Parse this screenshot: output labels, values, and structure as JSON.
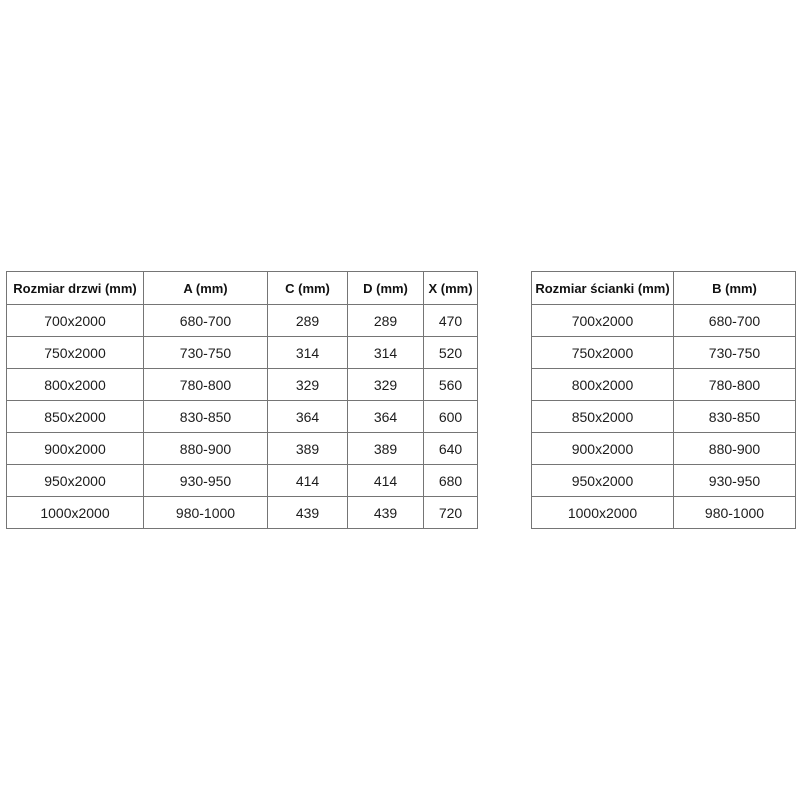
{
  "page": {
    "background_color": "#ffffff",
    "border_color": "#757575",
    "text_color": "#1c1c1c"
  },
  "tables": [
    {
      "id": "door-table",
      "title_column": "Rozmiar drzwi (mm)",
      "headers": [
        "Rozmiar drzwi (mm)",
        "A (mm)",
        "C (mm)",
        "D (mm)",
        "X (mm)"
      ],
      "rows": [
        [
          "700x2000",
          "680-700",
          "289",
          "289",
          "470"
        ],
        [
          "750x2000",
          "730-750",
          "314",
          "314",
          "520"
        ],
        [
          "800x2000",
          "780-800",
          "329",
          "329",
          "560"
        ],
        [
          "850x2000",
          "830-850",
          "364",
          "364",
          "600"
        ],
        [
          "900x2000",
          "880-900",
          "389",
          "389",
          "640"
        ],
        [
          "950x2000",
          "930-950",
          "414",
          "414",
          "680"
        ],
        [
          "1000x2000",
          "980-1000",
          "439",
          "439",
          "720"
        ]
      ]
    },
    {
      "id": "wall-table",
      "title_column": "Rozmiar ścianki (mm)",
      "headers": [
        "Rozmiar ścianki (mm)",
        "B (mm)"
      ],
      "rows": [
        [
          "700x2000",
          "680-700"
        ],
        [
          "750x2000",
          "730-750"
        ],
        [
          "800x2000",
          "780-800"
        ],
        [
          "850x2000",
          "830-850"
        ],
        [
          "900x2000",
          "880-900"
        ],
        [
          "950x2000",
          "930-950"
        ],
        [
          "1000x2000",
          "980-1000"
        ]
      ]
    }
  ]
}
